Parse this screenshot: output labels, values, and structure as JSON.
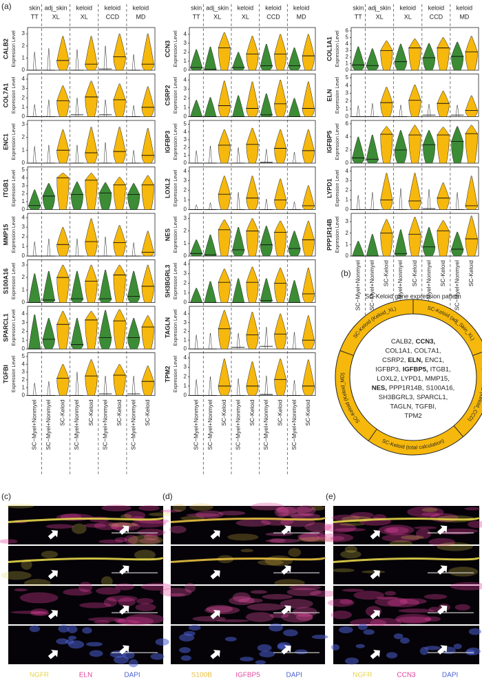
{
  "panel_labels": [
    "(a)",
    "(b)",
    "(c)",
    "(d)",
    "(e)"
  ],
  "violin": {
    "groups": [
      {
        "tissue": "skin",
        "method": "TT"
      },
      {
        "tissue": "adj_skin",
        "method": "XL"
      },
      {
        "tissue": "keloid",
        "method": "XL"
      },
      {
        "tissue": "keloid",
        "method": "CCD"
      },
      {
        "tissue": "keloid",
        "method": "MD"
      }
    ],
    "x_labels": [
      "SC−Myel+Nonmyel",
      "SC−Myel+Nonmyel",
      "SC-Keloid",
      "SC−Myel+Nonmyel",
      "SC-Keloid",
      "SC−Myel+Nonmyel",
      "SC-Keloid",
      "SC−Myel+Nonmyel",
      "SC-Keloid"
    ],
    "y_axis_label": "Expression Level",
    "colors": {
      "green": "#3c8c36",
      "keloid": "#f6b80c"
    },
    "columns": [
      [
        {
          "name": "CALB2",
          "ylim": [
            0,
            3.4
          ],
          "yticks": [
            0,
            1,
            2,
            3
          ],
          "green": false,
          "median": [
            0,
            0,
            0.8,
            0,
            0.5,
            0.1,
            1.1,
            0,
            0.5
          ],
          "max": [
            1.5,
            1.8,
            2.8,
            1.7,
            2.8,
            2,
            3,
            1.3,
            3
          ]
        },
        {
          "name": "COL7A1",
          "ylim": [
            0,
            4.4
          ],
          "yticks": [
            0,
            1,
            2,
            3,
            4
          ],
          "green": false,
          "median": [
            0,
            0,
            1.7,
            0.2,
            2.1,
            0.2,
            1.8,
            0,
            1
          ],
          "max": [
            1.3,
            1.8,
            3.3,
            2,
            3.8,
            1.8,
            3.5,
            1.2,
            3.2
          ]
        },
        {
          "name": "ENC1",
          "ylim": [
            0,
            3.2
          ],
          "yticks": [
            0,
            1,
            2,
            3
          ],
          "green": false,
          "median": [
            0,
            0,
            1,
            0,
            0.8,
            0,
            0.9,
            0,
            0.6
          ],
          "max": [
            1.3,
            1.4,
            2.6,
            1.4,
            2.8,
            1.6,
            2.8,
            1,
            2.7
          ]
        },
        {
          "name": "ITGB1",
          "ylim": [
            0,
            5.2
          ],
          "yticks": [
            0,
            1,
            2,
            3,
            4,
            5
          ],
          "green": true,
          "median": [
            0.5,
            1.7,
            4,
            1.9,
            3.7,
            2.1,
            3.1,
            1.9,
            3.1
          ],
          "max": [
            2.5,
            3.3,
            4.6,
            3.5,
            4.6,
            3.4,
            4.1,
            3.3,
            4.3
          ]
        },
        {
          "name": "MMP15",
          "ylim": [
            0,
            4.3
          ],
          "yticks": [
            0,
            1,
            2,
            3,
            4
          ],
          "green": false,
          "median": [
            0,
            0,
            1.2,
            0,
            1.5,
            0,
            1.4,
            0,
            0.4
          ],
          "max": [
            1.5,
            1.8,
            3,
            1.8,
            3.9,
            2,
            3.2,
            1.4,
            2.6
          ]
        },
        {
          "name": "S100A16",
          "ylim": [
            0,
            3.3
          ],
          "yticks": [
            0,
            1,
            2,
            3
          ],
          "green": true,
          "median": [
            0,
            0.2,
            2,
            0.3,
            1.7,
            0.3,
            2.2,
            0.5,
            1.3
          ],
          "max": [
            2.3,
            2.5,
            3,
            2.5,
            3,
            2.6,
            3,
            2.5,
            3
          ]
        },
        {
          "name": "SPARCL1",
          "ylim": [
            0,
            4.7
          ],
          "yticks": [
            0,
            1,
            2,
            3,
            4
          ],
          "green": true,
          "median": [
            0,
            1.1,
            2.8,
            0.5,
            3.3,
            1.3,
            3.2,
            1.3,
            2.5
          ],
          "max": [
            3.9,
            3.5,
            4.3,
            3.5,
            4.3,
            4.4,
            4.5,
            3.5,
            3.8
          ]
        },
        {
          "name": "TGFBI",
          "ylim": [
            0,
            5.3
          ],
          "yticks": [
            0,
            1,
            2,
            3,
            4,
            5
          ],
          "green": false,
          "median": [
            0,
            0,
            2.2,
            0,
            2.5,
            0.2,
            2.6,
            0.2,
            1.8
          ],
          "max": [
            1.6,
            1.8,
            4,
            3,
            4.6,
            2.5,
            4,
            2.5,
            3.8
          ]
        }
      ],
      [
        {
          "name": "CCN3",
          "ylim": [
            0,
            4.6
          ],
          "yticks": [
            0,
            1,
            2,
            3,
            4
          ],
          "green": true,
          "median": [
            0.3,
            0.1,
            2.5,
            0.3,
            1.8,
            0.5,
            1.8,
            0.5,
            1.6
          ],
          "max": [
            2.3,
            2.6,
            4.2,
            2,
            3.8,
            2.9,
            4,
            2.5,
            4
          ]
        },
        {
          "name": "CSRP2",
          "ylim": [
            0,
            4.5
          ],
          "yticks": [
            0,
            1,
            2,
            3,
            4
          ],
          "green": true,
          "median": [
            0,
            0,
            1.2,
            0,
            0.9,
            0.2,
            1.4,
            0,
            0.9
          ],
          "max": [
            1.8,
            2.1,
            3.9,
            2.3,
            3.8,
            2.5,
            4,
            2,
            3.8
          ]
        },
        {
          "name": "IGFBP3",
          "ylim": [
            0,
            5.3
          ],
          "yticks": [
            0,
            1,
            2,
            3,
            4,
            5
          ],
          "green": false,
          "median": [
            0,
            0,
            2.3,
            0,
            2.4,
            0.1,
            1.9,
            0,
            1.6
          ],
          "max": [
            1.6,
            2.2,
            4.3,
            2,
            4.5,
            1.8,
            4.3,
            1.4,
            4.3
          ]
        },
        {
          "name": "LOXL2",
          "ylim": [
            0,
            4.3
          ],
          "yticks": [
            0,
            1,
            2,
            3,
            4
          ],
          "green": false,
          "median": [
            0,
            0,
            1.6,
            0,
            1.2,
            0,
            1,
            0,
            0.4
          ],
          "max": [
            0.5,
            0.7,
            3.5,
            1.8,
            3.5,
            1.1,
            3.2,
            0.8,
            2.5
          ]
        },
        {
          "name": "NES",
          "ylim": [
            0,
            3.3
          ],
          "yticks": [
            0,
            1,
            2,
            3
          ],
          "green": true,
          "median": [
            0.2,
            0.1,
            2.1,
            0.5,
            2,
            0.9,
            1.9,
            0.6,
            1.3
          ],
          "max": [
            1.3,
            1.7,
            2.9,
            2.3,
            3,
            2.4,
            2.8,
            2,
            2.8
          ]
        },
        {
          "name": "SH3BGRL3",
          "ylim": [
            0,
            4.3
          ],
          "yticks": [
            0,
            1,
            2,
            3,
            4
          ],
          "green": true,
          "median": [
            0,
            0,
            2.1,
            0,
            2.1,
            0.2,
            2,
            0,
            0.9
          ],
          "max": [
            1.5,
            2.2,
            3.5,
            2.5,
            3.7,
            2.5,
            3.6,
            2.3,
            3.6
          ]
        },
        {
          "name": "TAGLN",
          "ylim": [
            0,
            4.7
          ],
          "yticks": [
            0,
            1,
            2,
            3,
            4
          ],
          "green": false,
          "median": [
            0,
            0,
            2.3,
            0.2,
            1.6,
            0.3,
            1.7,
            0,
            1
          ],
          "max": [
            1.6,
            1.8,
            4.4,
            1.8,
            4.2,
            2.5,
            4,
            1.9,
            3.8
          ]
        },
        {
          "name": "TPM2",
          "ylim": [
            0,
            4.4
          ],
          "yticks": [
            0,
            1,
            2,
            3,
            4
          ],
          "green": false,
          "median": [
            0,
            0,
            1,
            0,
            1,
            0.1,
            1.7,
            0,
            1
          ],
          "max": [
            1.7,
            2,
            3.9,
            1.8,
            3.6,
            2.1,
            3.9,
            1.6,
            3.8
          ]
        }
      ],
      [
        {
          "name": "COL1A1",
          "ylim": [
            0,
            6.3
          ],
          "yticks": [
            0,
            1,
            2,
            3,
            4,
            5,
            6
          ],
          "green": true,
          "median": [
            0.8,
            0.7,
            3,
            1.3,
            3.4,
            1.9,
            3.4,
            2.1,
            2.8
          ],
          "max": [
            3.6,
            3.3,
            4.5,
            4,
            4.8,
            4.1,
            5,
            4.3,
            5.2
          ]
        },
        {
          "name": "ELN",
          "ylim": [
            0,
            5.3
          ],
          "yticks": [
            0,
            1,
            2,
            3,
            4,
            5
          ],
          "green": false,
          "median": [
            0,
            0,
            1.8,
            0,
            2.1,
            0.2,
            1.7,
            0.2,
            0.8
          ],
          "max": [
            1.4,
            1.7,
            3.8,
            1.5,
            4.1,
            1.6,
            3.3,
            1.5,
            2.7
          ]
        },
        {
          "name": "IGFBP5",
          "ylim": [
            0,
            6.3
          ],
          "yticks": [
            0,
            2,
            4,
            6
          ],
          "green": true,
          "median": [
            0.8,
            0.6,
            4.4,
            2,
            4.3,
            2.8,
            4.3,
            3.3,
            4.5
          ],
          "max": [
            4,
            4.3,
            5.6,
            5,
            5.8,
            5,
            5.5,
            5.6,
            5.8
          ]
        },
        {
          "name": "LYPD1",
          "ylim": [
            0,
            4.3
          ],
          "yticks": [
            0,
            1,
            2,
            3,
            4
          ],
          "green": false,
          "median": [
            0,
            0,
            1,
            0,
            0.9,
            0.1,
            1.2,
            0,
            0.4
          ],
          "max": [
            1.5,
            1.8,
            3.8,
            2.2,
            3.8,
            2.1,
            2.8,
            1.8,
            3.5
          ]
        },
        {
          "name": "PPP1R14B",
          "ylim": [
            0,
            3.6
          ],
          "yticks": [
            0,
            1,
            2,
            3
          ],
          "green": true,
          "median": [
            0,
            0,
            2,
            0.2,
            1.9,
            0.8,
            2.2,
            0.6,
            1.5
          ],
          "max": [
            1.3,
            1.9,
            3.2,
            2.3,
            3.4,
            2.5,
            3.1,
            2.1,
            3.5
          ]
        }
      ]
    ]
  },
  "pattern": {
    "title": "SC-Keloid gene expression pattern",
    "ring_color": "#f6b80c",
    "segments": [
      "SC-Keloid (Keloid_XL)",
      "SC-Keloid (adj_Skin_XL)",
      "SC-Keloid (Keloid_CCD)",
      "SC-Keloid (total calculation)",
      "SC-Keloid (Keloid_MD)"
    ],
    "center_lines": [
      [
        {
          "text": "CALB2,"
        },
        {
          "text": "CCN3,",
          "bold": true
        }
      ],
      [
        {
          "text": "COL1A1,"
        },
        {
          "text": "COL7A1,"
        }
      ],
      [
        {
          "text": "CSRP2,"
        },
        {
          "text": "ELN,",
          "bold": true
        },
        {
          "text": "ENC1,"
        }
      ],
      [
        {
          "text": "IGFBP3,"
        },
        {
          "text": "IGFBP5,",
          "bold": true
        },
        {
          "text": "ITGB1,"
        }
      ],
      [
        {
          "text": "LOXL2,"
        },
        {
          "text": "LYPD1,"
        },
        {
          "text": "MMP15,"
        }
      ],
      [
        {
          "text": "NES,",
          "bold": true
        },
        {
          "text": "PPP1R14B,"
        },
        {
          "text": "S100A16,"
        }
      ],
      [
        {
          "text": "SH3BGRL3,"
        },
        {
          "text": "SPARCL1,"
        }
      ],
      [
        {
          "text": "TAGLN,"
        },
        {
          "text": "TGFBI,"
        }
      ],
      [
        {
          "text": "TPM2"
        }
      ]
    ]
  },
  "micrographs": [
    {
      "channels": [
        {
          "name": "NGFR",
          "color": "#e6d54a"
        },
        {
          "name": "ELN",
          "color": "#e0409a"
        },
        {
          "name": "DAPI",
          "color": "#4a5fd0"
        }
      ]
    },
    {
      "channels": [
        {
          "name": "S100B",
          "color": "#e8c040"
        },
        {
          "name": "IGFBP5",
          "color": "#e050a0"
        },
        {
          "name": "DAPI",
          "color": "#4a5fd0"
        }
      ]
    },
    {
      "channels": [
        {
          "name": "NGFR",
          "color": "#e6d54a"
        },
        {
          "name": "CCN3",
          "color": "#e0409a"
        },
        {
          "name": "DAPI",
          "color": "#4a5fd0"
        }
      ]
    }
  ]
}
